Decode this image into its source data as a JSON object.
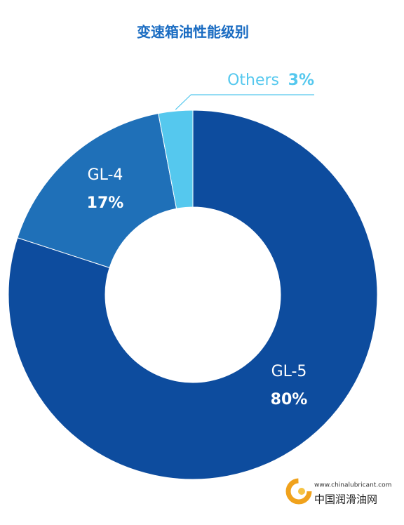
{
  "chart_data": {
    "type": "donut",
    "title": "变速箱油性能级别",
    "categories": [
      "GL-5",
      "GL-4",
      "Others"
    ],
    "values": [
      80,
      17,
      3
    ],
    "value_labels": [
      "80%",
      "17%",
      "3%"
    ],
    "colors": [
      "#0d4c9e",
      "#1f70b8",
      "#55c8ee"
    ],
    "watermark": {
      "url": "www.chinalubricant.com",
      "name": "中国润滑油网"
    }
  }
}
